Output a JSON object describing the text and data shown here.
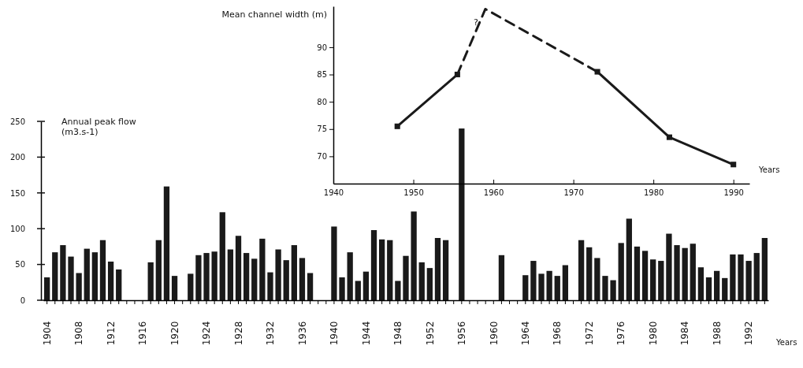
{
  "chart_data": [
    {
      "type": "bar",
      "ylabel": "Annual peak flow (m3.s-1)",
      "xlabel": "Years",
      "categories": [
        "1904",
        null,
        null,
        null,
        "1908",
        null,
        null,
        null,
        "1912",
        null,
        null,
        null,
        "1916",
        null,
        null,
        null,
        "1920",
        null,
        null,
        null,
        "1924",
        null,
        null,
        null,
        "1928",
        null,
        null,
        null,
        "1932",
        null,
        null,
        null,
        "1936",
        null,
        null,
        null,
        "1940",
        null,
        null,
        null,
        "1944",
        null,
        null,
        null,
        "1948",
        null,
        null,
        null,
        "1952",
        null,
        null,
        null,
        "1956",
        null,
        null,
        null,
        "1960",
        null,
        null,
        null,
        "1964",
        null,
        null,
        null,
        "1968",
        null,
        null,
        null,
        "1972",
        null,
        null,
        null,
        "1976",
        null,
        null,
        null,
        "1980",
        null,
        null,
        null,
        "1984",
        null,
        null,
        null,
        "1988",
        null,
        null,
        null,
        "1992",
        null,
        null
      ],
      "values": [
        32,
        67,
        77,
        61,
        38,
        72,
        67,
        84,
        54,
        43,
        null,
        null,
        null,
        53,
        84,
        159,
        34,
        null,
        37,
        63,
        66,
        68,
        123,
        71,
        90,
        66,
        58,
        86,
        39,
        71,
        56,
        77,
        59,
        38,
        null,
        null,
        103,
        32,
        67,
        27,
        40,
        98,
        85,
        84,
        27,
        62,
        124,
        53,
        45,
        87,
        84,
        null,
        240,
        null,
        null,
        null,
        null,
        63,
        null,
        null,
        35,
        55,
        37,
        41,
        34,
        49,
        null,
        84,
        74,
        59,
        34,
        28,
        80,
        114,
        75,
        69,
        57,
        55,
        93,
        77,
        73,
        79,
        46,
        32,
        41,
        31,
        64,
        64,
        55,
        66,
        87
      ],
      "color": "#1a1a1a",
      "ylim": [
        0,
        250
      ],
      "yticks": [
        0,
        50,
        100,
        150,
        200,
        250
      ],
      "grid": false
    },
    {
      "type": "line",
      "ylabel": "Mean channel width (m)",
      "xlabel": "Years",
      "xlim": [
        1940,
        1992
      ],
      "xticks": [
        1940,
        1950,
        1960,
        1970,
        1980,
        1990
      ],
      "ylim": [
        65,
        97.5
      ],
      "yticks": [
        70,
        75,
        80,
        85,
        90
      ],
      "series": [
        {
          "color": "#1a1a1a",
          "x": [
            1948,
            1955.5
          ],
          "values": [
            75.5,
            85
          ],
          "marker": "square",
          "line_style": "solid"
        },
        {
          "color": "#1a1a1a",
          "x": [
            1955.5,
            1959,
            1973
          ],
          "values": [
            85,
            97,
            85.5
          ],
          "marker": "none",
          "line_style": "dashed"
        },
        {
          "color": "#1a1a1a",
          "x": [
            1973,
            1982,
            1990
          ],
          "values": [
            85.5,
            73.5,
            68.5
          ],
          "marker": "square",
          "line_style": "solid"
        }
      ],
      "annotations": [
        "?"
      ],
      "grid": false
    }
  ]
}
